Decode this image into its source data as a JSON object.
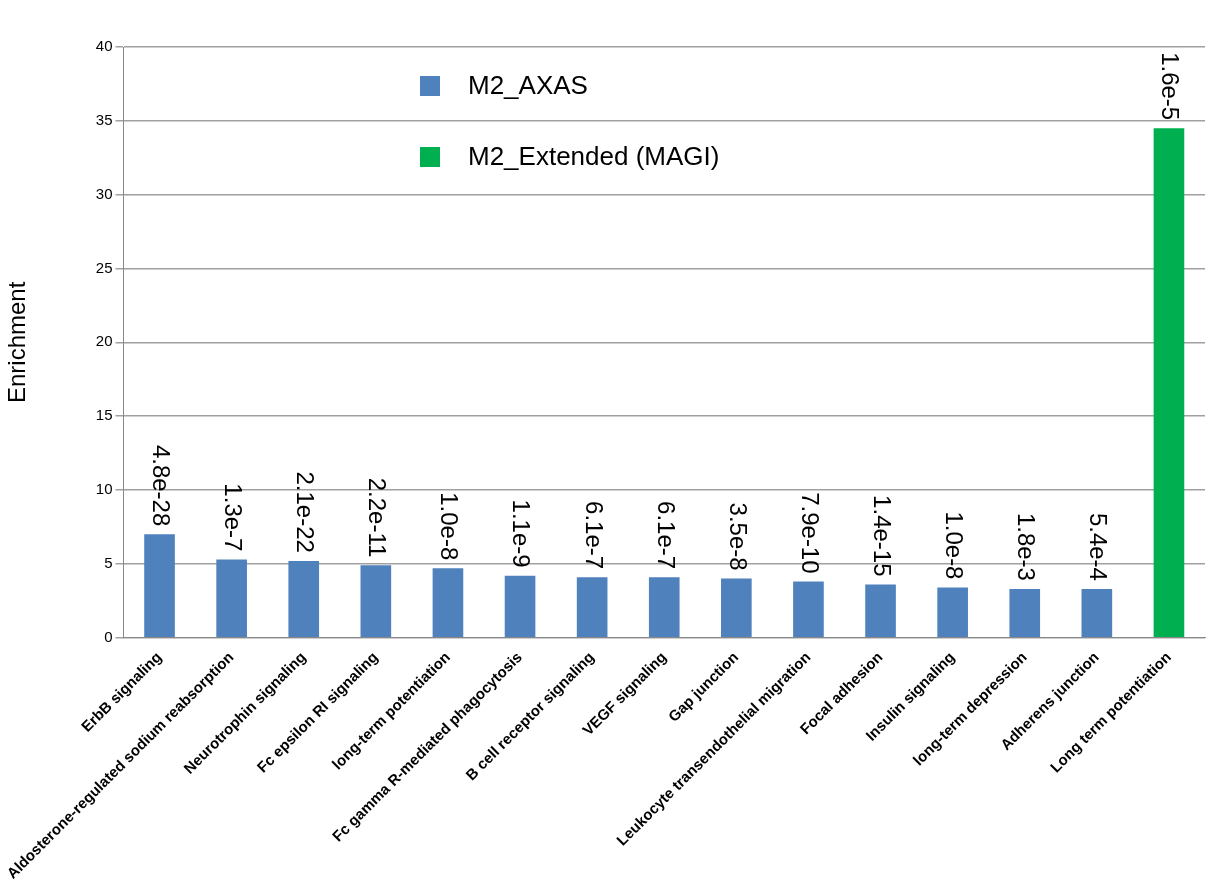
{
  "chart_data": {
    "type": "bar",
    "ylabel": "Enrichment",
    "categories": [
      "ErbB signaling",
      "Aldosterone-regulated sodium reabsorption",
      "Neurotrophin signaling",
      "Fc epsilon RI signaling",
      "long-term potentiation",
      "Fc gamma R-mediated phagocytosis",
      "B cell receptor signaling",
      "VEGF signaling",
      "Gap junction",
      "Leukocyte transendothelial migration",
      "Focal adhesion",
      "Insulin signaling",
      "long-term depression",
      "Adherens junction",
      "Long term potentiation"
    ],
    "series": [
      {
        "name": "M2_AXAS",
        "color": "#4f81bd",
        "values": [
          7.0,
          5.3,
          5.2,
          4.9,
          4.7,
          4.2,
          4.1,
          4.1,
          4.0,
          3.8,
          3.6,
          3.4,
          3.3,
          3.3,
          null
        ]
      },
      {
        "name": "M2_Extended (MAGI)",
        "color": "#00b050",
        "values": [
          null,
          null,
          null,
          null,
          null,
          null,
          null,
          null,
          null,
          null,
          null,
          null,
          null,
          null,
          34.5
        ]
      }
    ],
    "annotations": [
      {
        "text": "4.8e-28",
        "x": "ErbB signaling",
        "y": 7.0
      },
      {
        "text": "1.3e-7",
        "x": "Aldosterone-regulated sodium reabsorption",
        "y": 5.3
      },
      {
        "text": "2.1e-22",
        "x": "Neurotrophin signaling",
        "y": 5.2
      },
      {
        "text": "2.2e-11",
        "x": "Fc epsilon RI signaling",
        "y": 4.9
      },
      {
        "text": "1.0e-8",
        "x": "long-term potentiation",
        "y": 4.7
      },
      {
        "text": "1.1e-9",
        "x": "Fc gamma R-mediated phagocytosis",
        "y": 4.2
      },
      {
        "text": "6.1e-7",
        "x": "B cell receptor signaling",
        "y": 4.1
      },
      {
        "text": "6.1e-7",
        "x": "VEGF signaling",
        "y": 4.1
      },
      {
        "text": "3.5e-8",
        "x": "Gap junction",
        "y": 4.0
      },
      {
        "text": "7.9e-10",
        "x": "Leukocyte transendothelial migration",
        "y": 3.8
      },
      {
        "text": "1.4e-15",
        "x": "Focal adhesion",
        "y": 3.6
      },
      {
        "text": "1.0e-8",
        "x": "Insulin signaling",
        "y": 3.4
      },
      {
        "text": "1.8e-3",
        "x": "long-term depression",
        "y": 3.3
      },
      {
        "text": "5.4e-4",
        "x": "Adherens junction",
        "y": 3.3
      },
      {
        "text": "1.6e-5",
        "x": "Long term potentiation",
        "y": 34.5
      }
    ],
    "ylim": [
      0,
      40
    ],
    "yticks": [
      0,
      5,
      10,
      15,
      20,
      25,
      30,
      35,
      40
    ],
    "grid": "y",
    "legend": "top left"
  }
}
